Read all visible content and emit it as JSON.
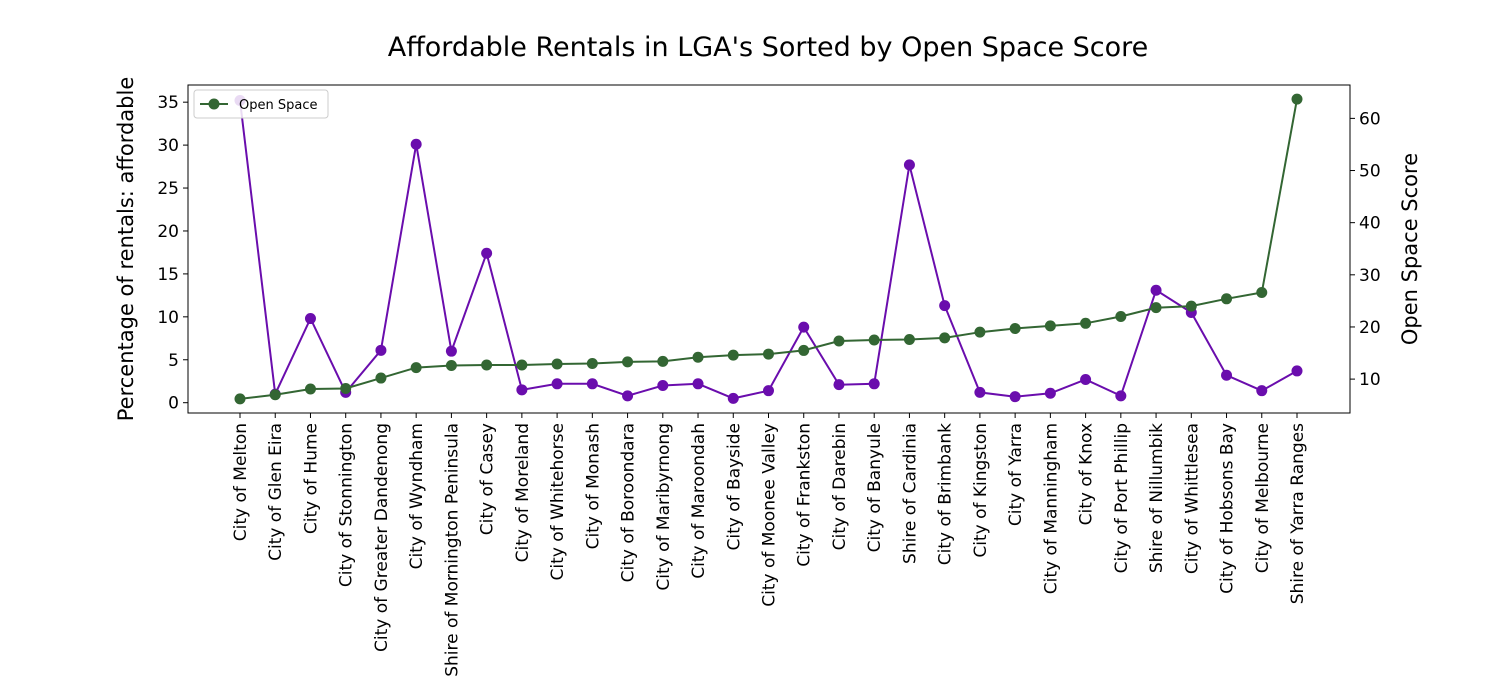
{
  "chart_data": {
    "type": "line",
    "title": "Affordable Rentals in LGA's Sorted by Open Space Score",
    "ylabel_left": "Percentage of rentals: affordable",
    "ylabel_right": "Open Space Score",
    "ylim_left": [
      -1.2,
      37.0
    ],
    "ylim_right": [
      3.5,
      66.4
    ],
    "yticks_left": [
      0,
      5,
      10,
      15,
      20,
      25,
      30,
      35
    ],
    "yticks_right": [
      10,
      20,
      30,
      40,
      50,
      60
    ],
    "grid": false,
    "legend": {
      "position": "top-left",
      "entries": [
        "Open Space"
      ]
    },
    "categories": [
      "City of Melton",
      "City of Glen Eira",
      "City of Hume",
      "City of Stonnington",
      "City of Greater Dandenong",
      "City of Wyndham",
      "Shire of Mornington Peninsula",
      "City of Casey",
      "City of Moreland",
      "City of Whitehorse",
      "City of Monash",
      "City of Boroondara",
      "City of Maribyrnong",
      "City of Maroondah",
      "City of Bayside",
      "City of Moonee Valley",
      "City of Frankston",
      "City of Darebin",
      "City of Banyule",
      "Shire of Cardinia",
      "City of Brimbank",
      "City of Kingston",
      "City of Yarra",
      "City of Manningham",
      "City of Knox",
      "City of Port Phillip",
      "Shire of Nillumbik",
      "City of Whittlesea",
      "City of Hobsons Bay",
      "City of Melbourne",
      "Shire of Yarra Ranges"
    ],
    "series": [
      {
        "axis": "left",
        "color": "#6a0dad",
        "values": [
          35.2,
          1.0,
          9.8,
          1.2,
          6.1,
          30.1,
          6.0,
          17.4,
          1.5,
          2.2,
          2.2,
          0.8,
          2.0,
          2.2,
          0.5,
          1.4,
          8.8,
          2.1,
          2.2,
          27.7,
          11.3,
          1.2,
          0.7,
          1.1,
          2.7,
          0.8,
          13.1,
          10.5,
          3.2,
          1.4,
          3.7
        ]
      },
      {
        "name": "Open Space",
        "axis": "right",
        "color": "#336633",
        "values": [
          6.2,
          7.0,
          8.1,
          8.2,
          10.2,
          12.2,
          12.6,
          12.7,
          12.7,
          12.9,
          13.0,
          13.3,
          13.4,
          14.2,
          14.6,
          14.8,
          15.5,
          17.3,
          17.5,
          17.6,
          17.9,
          19.0,
          19.7,
          20.2,
          20.7,
          22.0,
          23.7,
          24.0,
          25.4,
          26.6,
          63.7
        ]
      }
    ]
  }
}
